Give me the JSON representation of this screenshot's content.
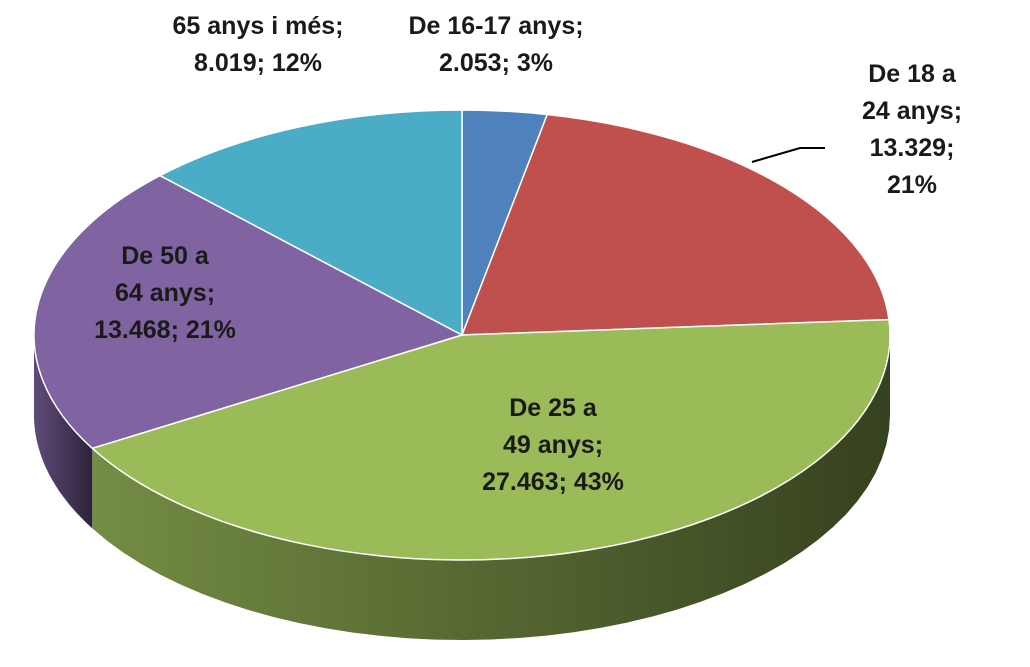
{
  "chart_data": {
    "type": "pie3d",
    "categories": [
      "De 16-17 anys",
      "De 18 a\n24 anys",
      "De 25 a\n49 anys",
      "De 50 a\n64 anys",
      "65 anys i més"
    ],
    "values": [
      2053,
      13329,
      27463,
      13468,
      8019
    ],
    "value_labels": [
      "2.053",
      "13.329",
      "27.463",
      "13.468",
      "8.019"
    ],
    "percent_labels": [
      "3%",
      "21%",
      "43%",
      "21%",
      "12%"
    ],
    "label_separator": ";",
    "colors": [
      "#4f81bd",
      "#c0504d",
      "#9bbb59",
      "#8064a2",
      "#4bacc6"
    ]
  }
}
